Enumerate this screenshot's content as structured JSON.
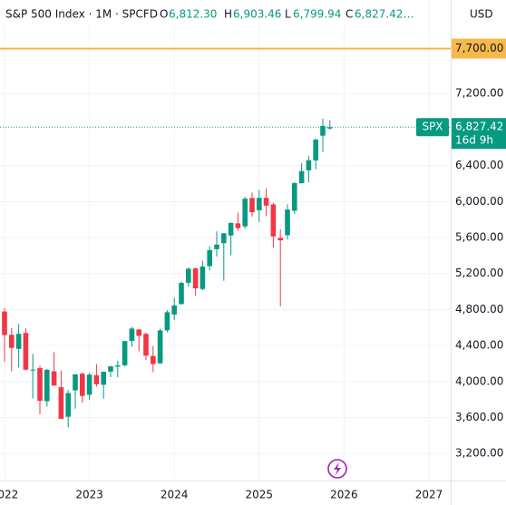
{
  "header": {
    "title": "S&P 500 Index · 1M · SPCFD",
    "o_key": "O",
    "o": "6,812.30",
    "h_key": "H",
    "h": "6,903.46",
    "l_key": "L",
    "l": "6,799.94",
    "c_key": "C",
    "c": "6,827.42…",
    "currency": "USD"
  },
  "chart_data": {
    "type": "candlestick",
    "categories": [
      "2022",
      null,
      null,
      null,
      null,
      null,
      null,
      null,
      null,
      null,
      null,
      null,
      "2023",
      null,
      null,
      null,
      null,
      null,
      null,
      null,
      null,
      null,
      null,
      null,
      "2024",
      null,
      null,
      null,
      null,
      null,
      null,
      null,
      null,
      null,
      null,
      null,
      "2025",
      null,
      null,
      null,
      null,
      null,
      null,
      null,
      null,
      null,
      null,
      null,
      "2026",
      null,
      null,
      null,
      null,
      null,
      null,
      null,
      null,
      null,
      null,
      null,
      "2027"
    ],
    "open": [
      4778,
      4519,
      4363,
      4540,
      4130,
      4149,
      3781,
      4113,
      3937,
      3609,
      3902,
      4087,
      3853,
      4071,
      3964,
      4110,
      4166,
      4181,
      4451,
      4578,
      4530,
      4284,
      4202,
      4570,
      4745,
      4861,
      5098,
      5258,
      5029,
      5283,
      5471,
      5538,
      5623,
      5758,
      5724,
      6040,
      5903,
      6041,
      5968,
      5597,
      5626,
      5897,
      6204,
      6347,
      6457,
      6732,
      6812.3,
      null,
      null,
      null,
      null,
      null,
      null,
      null,
      null,
      null,
      null,
      null,
      null,
      null,
      null
    ],
    "high": [
      4819,
      4595,
      4637,
      4594,
      4307,
      4178,
      4141,
      4325,
      4120,
      3906,
      4080,
      4101,
      4095,
      4195,
      4110,
      4170,
      4232,
      4449,
      4607,
      4584,
      4541,
      4393,
      4587,
      4794,
      4932,
      5111,
      5265,
      5264,
      5342,
      5505,
      5669,
      5651,
      5768,
      5879,
      6054,
      6100,
      6128,
      6147,
      5986,
      5695,
      5969,
      6215,
      6427,
      6508,
      6700,
      6920,
      6903.46,
      null,
      null,
      null,
      null,
      null,
      null,
      null,
      null,
      null,
      null,
      null,
      null,
      null,
      null
    ],
    "low": [
      4223,
      4115,
      4157,
      4125,
      3811,
      3637,
      3722,
      3955,
      3585,
      3492,
      3699,
      3764,
      3794,
      3943,
      3809,
      4049,
      4048,
      4167,
      4385,
      4335,
      4238,
      4104,
      4197,
      4547,
      4683,
      4853,
      5056,
      4953,
      5012,
      5235,
      5390,
      5120,
      5403,
      5675,
      5696,
      5832,
      5773,
      5837,
      5489,
      4835,
      5578,
      5862,
      6201,
      6212,
      6360,
      6551,
      6799.94,
      null,
      null,
      null,
      null,
      null,
      null,
      null,
      null,
      null,
      null,
      null,
      null,
      null,
      null
    ],
    "close": [
      4516,
      4374,
      4530,
      4132,
      4132,
      3785,
      4130,
      3955,
      3586,
      3872,
      4080,
      3840,
      4077,
      3970,
      4109,
      4169,
      4180,
      4450,
      4589,
      4508,
      4288,
      4194,
      4568,
      4770,
      4846,
      5096,
      5254,
      5036,
      5278,
      5460,
      5522,
      5648,
      5762,
      5705,
      6032,
      5882,
      6041,
      5955,
      5612,
      5569,
      5912,
      6205,
      6339,
      6460,
      6688,
      6840,
      6827.42,
      null,
      null,
      null,
      null,
      null,
      null,
      null,
      null,
      null,
      null,
      null,
      null,
      null,
      null
    ],
    "up_color": "#089981",
    "down_color": "#f23645",
    "ylim": [
      2900,
      8240
    ],
    "yticks": [
      {
        "value": 3200,
        "label": "3,200.00"
      },
      {
        "value": 3600,
        "label": "3,600.00"
      },
      {
        "value": 4000,
        "label": "4,000.00"
      },
      {
        "value": 4400,
        "label": "4,400.00"
      },
      {
        "value": 4800,
        "label": "4,800.00"
      },
      {
        "value": 5200,
        "label": "5,200.00"
      },
      {
        "value": 5600,
        "label": "5,600.00"
      },
      {
        "value": 6000,
        "label": "6,000.00"
      },
      {
        "value": 6400,
        "label": "6,400.00"
      },
      {
        "value": 7200,
        "label": "7,200.00"
      }
    ],
    "grid": true,
    "alert_line": {
      "value": 7700,
      "label": "7,700.00",
      "color": "#f7b84b"
    },
    "price_label": {
      "symbol": "SPX",
      "value": "6,827.42",
      "countdown": "16d 9h"
    }
  }
}
